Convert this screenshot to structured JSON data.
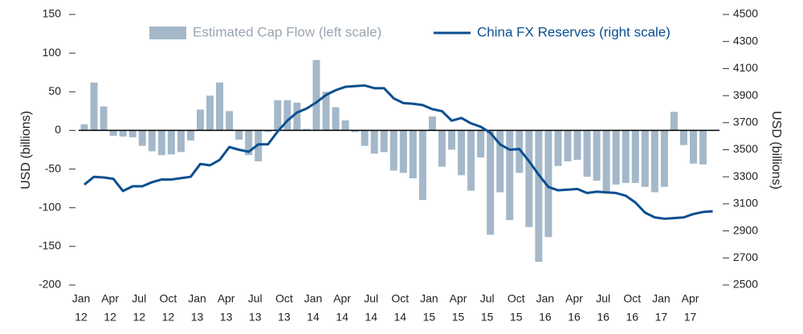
{
  "chart_data": {
    "type": "bar",
    "ylabel": "USD (billions)",
    "y2label": "USD (billions)",
    "ylim": [
      -200,
      150
    ],
    "yticks": [
      -200,
      -150,
      -100,
      -50,
      0,
      50,
      100,
      150
    ],
    "y2lim": [
      2500,
      4500
    ],
    "y2ticks": [
      2500,
      2700,
      2900,
      3100,
      3300,
      3500,
      3700,
      3900,
      4100,
      4300,
      4500
    ],
    "legend": "top",
    "categories": [
      [
        "Jan",
        "12"
      ],
      null,
      null,
      [
        "Apr",
        "12"
      ],
      null,
      null,
      [
        "Jul",
        "12"
      ],
      null,
      null,
      [
        "Oct",
        "12"
      ],
      null,
      null,
      [
        "Jan",
        "13"
      ],
      null,
      null,
      [
        "Apr",
        "13"
      ],
      null,
      null,
      [
        "Jul",
        "13"
      ],
      null,
      null,
      [
        "Oct",
        "13"
      ],
      null,
      null,
      [
        "Jan",
        "14"
      ],
      null,
      null,
      [
        "Apr",
        "14"
      ],
      null,
      null,
      [
        "Jul",
        "14"
      ],
      null,
      null,
      [
        "Oct",
        "14"
      ],
      null,
      null,
      [
        "Jan",
        "15"
      ],
      null,
      null,
      [
        "Apr",
        "15"
      ],
      null,
      null,
      [
        "Jul",
        "15"
      ],
      null,
      null,
      [
        "Oct",
        "15"
      ],
      null,
      null,
      [
        "Jan",
        "16"
      ],
      null,
      null,
      [
        "Apr",
        "16"
      ],
      null,
      null,
      [
        "Jul",
        "16"
      ],
      null,
      null,
      [
        "Oct",
        "16"
      ],
      null,
      null,
      [
        "Jan",
        "17"
      ],
      null,
      null,
      [
        "Apr",
        "17"
      ],
      null,
      null
    ],
    "series": [
      {
        "name": "Estimated Cap Flow (left scale)",
        "type": "bar",
        "color": "#a4b8c9",
        "axis": "y",
        "values": [
          8,
          62,
          31,
          -7,
          -8,
          -9,
          -20,
          -27,
          -32,
          -31,
          -28,
          -13,
          27,
          45,
          62,
          25,
          -12,
          -32,
          -40,
          -2,
          39,
          39,
          36,
          2,
          91,
          50,
          30,
          13,
          -2,
          -20,
          -30,
          -28,
          -52,
          -55,
          -62,
          -90,
          18,
          -47,
          -25,
          -58,
          -78,
          -35,
          -135,
          -80,
          -116,
          -55,
          -125,
          -170,
          -138,
          -46,
          -40,
          -38,
          -60,
          -65,
          -80,
          -70,
          -68,
          -68,
          -73,
          -80,
          -73,
          24,
          -19,
          -43,
          -44,
          null
        ]
      },
      {
        "name": "China FX Reserves (right scale)",
        "type": "line",
        "color": "#0b4f8f",
        "axis": "y2",
        "values": [
          3242,
          3300,
          3295,
          3285,
          3195,
          3230,
          3230,
          3260,
          3280,
          3280,
          3290,
          3300,
          3395,
          3385,
          3425,
          3520,
          3500,
          3485,
          3540,
          3540,
          3635,
          3715,
          3775,
          3805,
          3850,
          3905,
          3940,
          3965,
          3970,
          3975,
          3955,
          3955,
          3880,
          3845,
          3840,
          3830,
          3800,
          3785,
          3715,
          3735,
          3695,
          3670,
          3625,
          3540,
          3500,
          3505,
          3415,
          3315,
          3225,
          3200,
          3205,
          3210,
          3180,
          3190,
          3185,
          3180,
          3160,
          3110,
          3035,
          3000,
          2990,
          2995,
          3000,
          3025,
          3040,
          3045
        ]
      }
    ]
  }
}
